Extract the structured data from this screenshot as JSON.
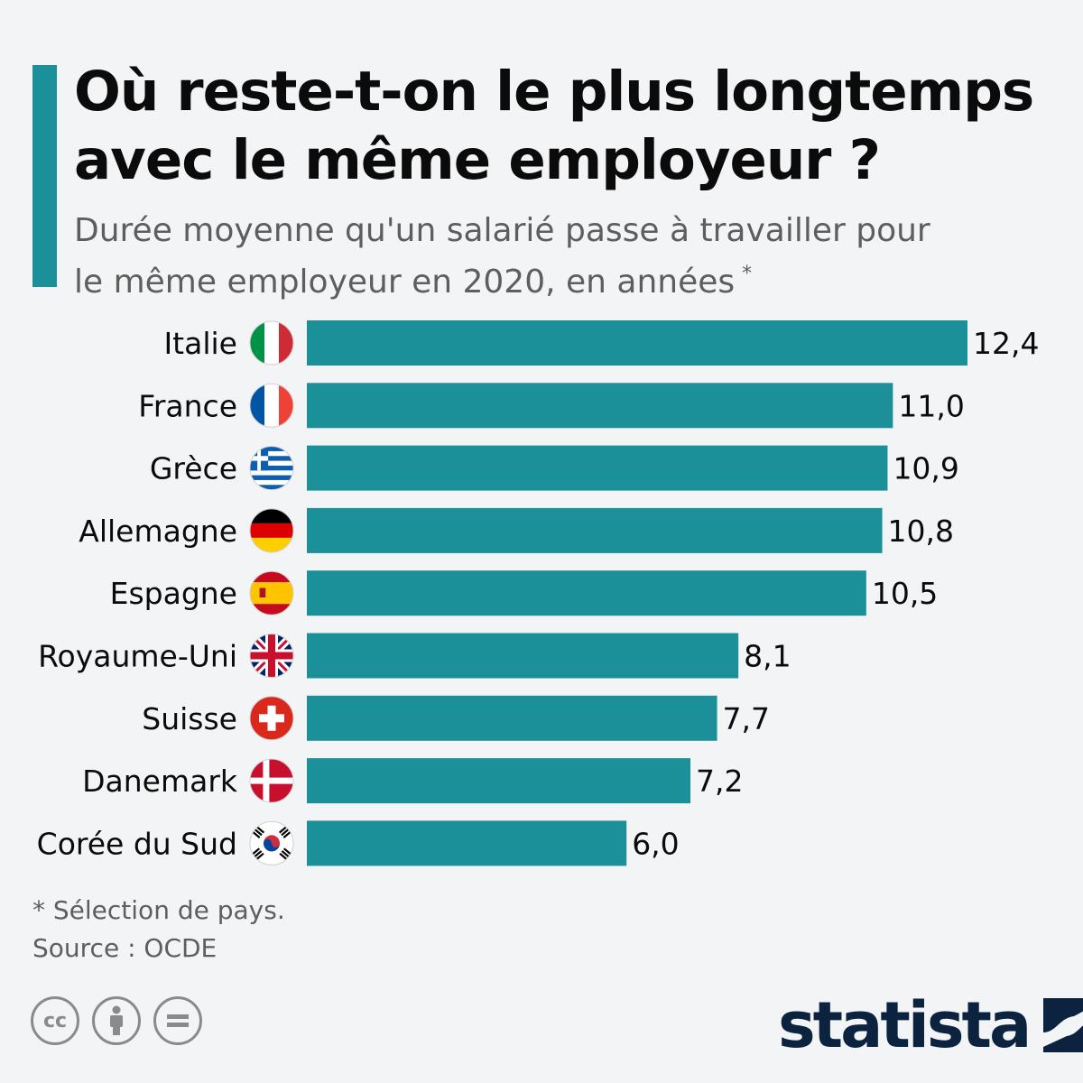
{
  "header": {
    "title_line1": "Où reste-t-on le plus longtemps",
    "title_line2": "avec le même employeur ?",
    "subtitle_line1": "Durée moyenne qu'un salarié passe à travailler pour",
    "subtitle_line2": "le même employeur en 2020, en années",
    "subtitle_mark": "*"
  },
  "colors": {
    "bar": "#1b9098",
    "accent": "#1b9098",
    "text": "#0b0b0b",
    "muted": "#5e5e5e",
    "brand": "#0c2340"
  },
  "chart_data": {
    "type": "bar",
    "orientation": "horizontal",
    "categories": [
      "Italie",
      "France",
      "Grèce",
      "Allemagne",
      "Espagne",
      "Royaume-Uni",
      "Suisse",
      "Danemark",
      "Corée du Sud"
    ],
    "values": [
      12.4,
      11.0,
      10.9,
      10.8,
      10.5,
      8.1,
      7.7,
      7.2,
      6.0
    ],
    "value_labels": [
      "12,4",
      "11,0",
      "10,9",
      "10,8",
      "10,5",
      "8,1",
      "7,7",
      "7,2",
      "6,0"
    ],
    "flags": [
      "italy-flag",
      "france-flag",
      "greece-flag",
      "germany-flag",
      "spain-flag",
      "uk-flag",
      "switzerland-flag",
      "denmark-flag",
      "south-korea-flag"
    ],
    "xlim": [
      0,
      12.4
    ],
    "grid": false,
    "legend": "none"
  },
  "footer": {
    "footnote": "* Sélection de pays.",
    "source": "Source : OCDE",
    "brand": "statista",
    "license_icons": [
      "cc-icon",
      "by-icon",
      "nd-icon"
    ]
  }
}
